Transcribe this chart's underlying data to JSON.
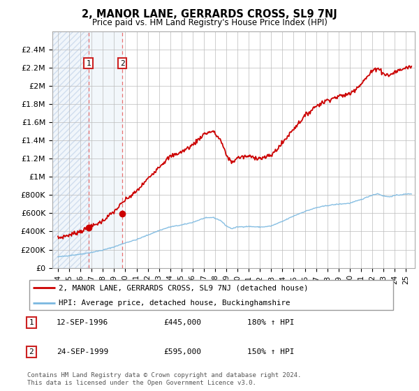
{
  "title": "2, MANOR LANE, GERRARDS CROSS, SL9 7NJ",
  "subtitle": "Price paid vs. HM Land Registry's House Price Index (HPI)",
  "legend_line1": "2, MANOR LANE, GERRARDS CROSS, SL9 7NJ (detached house)",
  "legend_line2": "HPI: Average price, detached house, Buckinghamshire",
  "transaction1_date": "12-SEP-1996",
  "transaction1_price": "£445,000",
  "transaction1_hpi": "180% ↑ HPI",
  "transaction2_date": "24-SEP-1999",
  "transaction2_price": "£595,000",
  "transaction2_hpi": "150% ↑ HPI",
  "footer": "Contains HM Land Registry data © Crown copyright and database right 2024.\nThis data is licensed under the Open Government Licence v3.0.",
  "hpi_color": "#7ab8e0",
  "price_color": "#cc0000",
  "marker_color": "#cc0000",
  "dot1_x": 1996.71,
  "dot1_y": 445000,
  "dot2_x": 1999.73,
  "dot2_y": 595000,
  "ylim_max": 2600000,
  "xlim_min": 1993.5,
  "xlim_max": 2025.8,
  "hatch_xmin": 1993.5,
  "hatch_xmax": 1996.71,
  "shaded_xmin": 1996.71,
  "shaded_xmax": 1999.73,
  "hatch_color": "#dce9f5",
  "shaded_color": "#dce9f5",
  "grid_color": "#bbbbbb",
  "yticks": [
    0,
    200000,
    400000,
    600000,
    800000,
    1000000,
    1200000,
    1400000,
    1600000,
    1800000,
    2000000,
    2200000,
    2400000
  ],
  "ytick_labels": [
    "£0",
    "£200K",
    "£400K",
    "£600K",
    "£800K",
    "£1M",
    "£1.2M",
    "£1.4M",
    "£1.6M",
    "£1.8M",
    "£2M",
    "£2.2M",
    "£2.4M"
  ],
  "xticks": [
    1994,
    1995,
    1996,
    1997,
    1998,
    1999,
    2000,
    2001,
    2002,
    2003,
    2004,
    2005,
    2006,
    2007,
    2008,
    2009,
    2010,
    2011,
    2012,
    2013,
    2014,
    2015,
    2016,
    2017,
    2018,
    2019,
    2020,
    2021,
    2022,
    2023,
    2024,
    2025
  ]
}
